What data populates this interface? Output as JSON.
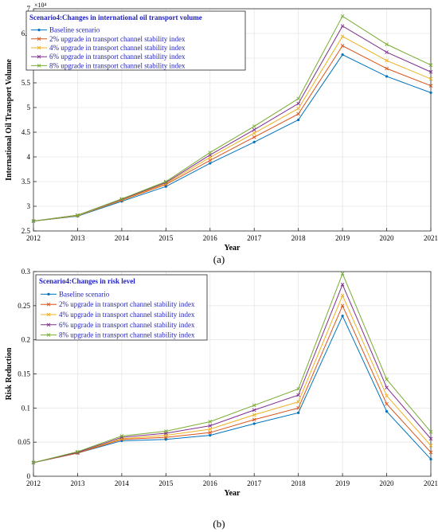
{
  "chart_data": [
    {
      "type": "line",
      "title": "Scenario4:Changes in international oil transport volume",
      "xlabel": "Year",
      "ylabel": "International Oil Transport Volume",
      "y_exponent_label": "×10⁴",
      "subfigure_label": "(a)",
      "x": [
        2012,
        2013,
        2014,
        2015,
        2016,
        2017,
        2018,
        2019,
        2020,
        2021
      ],
      "xlim": [
        2012,
        2021
      ],
      "ylim": [
        2.5,
        7
      ],
      "y_ticks": [
        2.5,
        3,
        3.5,
        4,
        4.5,
        5,
        5.5,
        6,
        6.5,
        7
      ],
      "y_tick_labels": [
        "2.5",
        "3",
        "3.5",
        "4",
        "4.5",
        "5",
        "5.5",
        "6",
        "6.5",
        "7"
      ],
      "grid": true,
      "legend_position": "top-left",
      "series": [
        {
          "name": "Baseline scenario",
          "color": "#0072BD",
          "marker": "dot",
          "values": [
            2.7,
            2.8,
            3.1,
            3.4,
            3.87,
            4.3,
            4.75,
            6.07,
            5.63,
            5.3
          ]
        },
        {
          "name": "2% upgrade in transport channel stability index",
          "color": "#D95319",
          "marker": "x",
          "values": [
            2.7,
            2.81,
            3.12,
            3.44,
            3.93,
            4.4,
            4.87,
            6.25,
            5.79,
            5.44
          ]
        },
        {
          "name": "4% upgrade in transport channel stability index",
          "color": "#EDB120",
          "marker": "x",
          "values": [
            2.7,
            2.81,
            3.13,
            3.46,
            3.99,
            4.48,
            4.98,
            6.44,
            5.95,
            5.58
          ]
        },
        {
          "name": "6% upgrade in transport channel stability index",
          "color": "#7E2F8E",
          "marker": "x",
          "values": [
            2.7,
            2.82,
            3.14,
            3.48,
            4.04,
            4.55,
            5.08,
            6.65,
            6.12,
            5.72
          ]
        },
        {
          "name": "8% upgrade in transport channel stability index",
          "color": "#77AC30",
          "marker": "x",
          "values": [
            2.7,
            2.82,
            3.15,
            3.5,
            4.09,
            4.62,
            5.18,
            6.85,
            6.28,
            5.86
          ]
        }
      ]
    },
    {
      "type": "line",
      "title": "Scenario4:Changes in risk level",
      "xlabel": "Year",
      "ylabel": "Risk Reduction",
      "subfigure_label": "(b)",
      "x": [
        2012,
        2013,
        2014,
        2015,
        2016,
        2017,
        2018,
        2019,
        2020,
        2021
      ],
      "xlim": [
        2012,
        2021
      ],
      "ylim": [
        0,
        0.3
      ],
      "y_ticks": [
        0,
        0.05,
        0.1,
        0.15,
        0.2,
        0.25,
        0.3
      ],
      "y_tick_labels": [
        "0",
        "0.05",
        "0.1",
        "0.15",
        "0.2",
        "0.25",
        "0.3"
      ],
      "grid": true,
      "legend_position": "top-left",
      "series": [
        {
          "name": "Baseline scenario",
          "color": "#0072BD",
          "marker": "dot",
          "values": [
            0.02,
            0.034,
            0.052,
            0.054,
            0.06,
            0.077,
            0.093,
            0.235,
            0.095,
            0.025
          ]
        },
        {
          "name": "2% upgrade in transport channel stability index",
          "color": "#D95319",
          "marker": "x",
          "values": [
            0.02,
            0.034,
            0.054,
            0.057,
            0.064,
            0.083,
            0.1,
            0.25,
            0.106,
            0.035
          ]
        },
        {
          "name": "4% upgrade in transport channel stability index",
          "color": "#EDB120",
          "marker": "x",
          "values": [
            0.02,
            0.035,
            0.055,
            0.06,
            0.069,
            0.09,
            0.109,
            0.265,
            0.118,
            0.045
          ]
        },
        {
          "name": "6% upgrade in transport channel stability index",
          "color": "#7E2F8E",
          "marker": "x",
          "values": [
            0.02,
            0.035,
            0.057,
            0.063,
            0.074,
            0.097,
            0.119,
            0.281,
            0.13,
            0.055
          ]
        },
        {
          "name": "8% upgrade in transport channel stability index",
          "color": "#77AC30",
          "marker": "x",
          "values": [
            0.02,
            0.036,
            0.059,
            0.066,
            0.08,
            0.104,
            0.128,
            0.297,
            0.142,
            0.065
          ]
        }
      ]
    }
  ]
}
